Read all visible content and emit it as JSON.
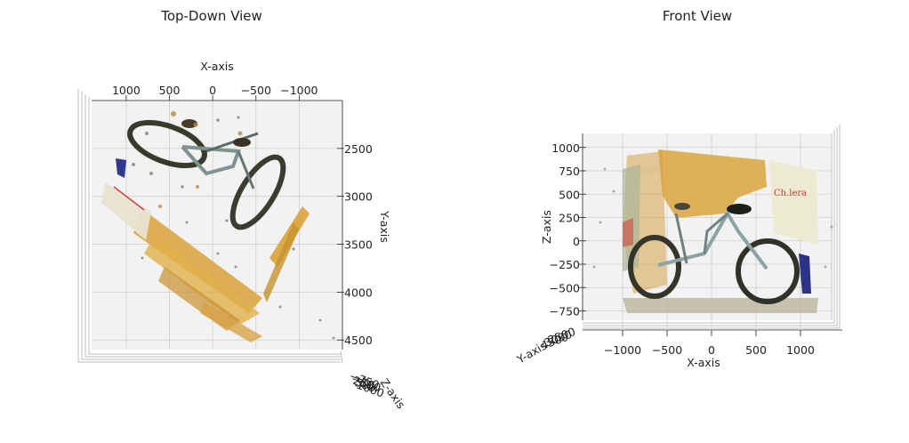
{
  "chart_data": [
    {
      "type": "scatter",
      "title": "Top-Down View",
      "projection": "3d",
      "view": "top-down",
      "xlabel": "X-axis",
      "ylabel": "Y-axis",
      "zlabel": "Z-axis",
      "xticks": [
        1000,
        500,
        0,
        -500,
        -1000
      ],
      "xtick_labels": [
        "1000",
        "500",
        "0",
        "−500",
        "−1000"
      ],
      "yticks": [
        2500,
        3000,
        3500,
        4000,
        4500
      ],
      "ytick_labels": [
        "2500",
        "3000",
        "3500",
        "4000",
        "4500"
      ],
      "xlim": [
        1400,
        -1500
      ],
      "ylim": [
        2000,
        4600
      ],
      "grid": true,
      "content": "colored point cloud of a bicycle in front of a wall"
    },
    {
      "type": "scatter",
      "title": "Front View",
      "projection": "3d",
      "view": "front",
      "xlabel": "X-axis",
      "ylabel": "Y-axis",
      "zlabel": "Z-axis",
      "xticks": [
        -1000,
        -500,
        0,
        500,
        1000
      ],
      "xtick_labels": [
        "−1000",
        "−500",
        "0",
        "500",
        "1000"
      ],
      "zticks": [
        1000,
        750,
        500,
        250,
        0,
        -250,
        -500,
        -750
      ],
      "ztick_labels": [
        "1000",
        "750",
        "500",
        "250",
        "0",
        "−250",
        "−500",
        "−750"
      ],
      "xlim": [
        -1450,
        1450
      ],
      "zlim": [
        -850,
        1150
      ],
      "grid": true,
      "content": "colored point cloud of a bicycle in front of a wall"
    }
  ]
}
